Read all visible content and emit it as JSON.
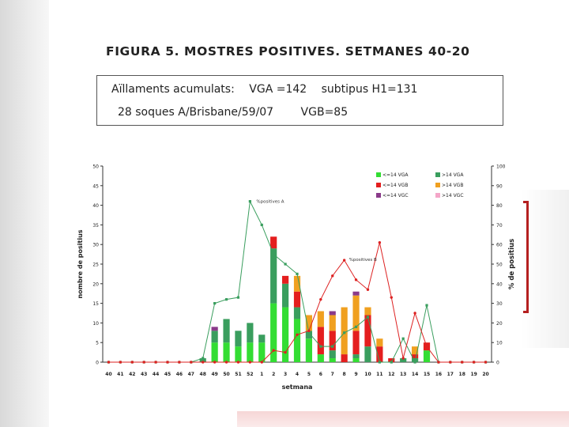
{
  "title": "FIGURA 5. MOSTRES POSITIVES. SETMANES 40-20",
  "info": {
    "line1_a": "Aïllaments acumulats:",
    "line1_b": "VGA =142",
    "line1_c": "subtipus H1=131",
    "line2_a": "28 soques A/Brisbane/59/07",
    "line2_b": "VGB=85"
  },
  "colors": {
    "vga_lt14": "#33dd33",
    "vga_gt14": "#3a9e5e",
    "vgb_lt14": "#e41e1e",
    "vgb_gt14": "#f0a020",
    "vgc_lt14": "#8a3a8a",
    "vgc_gt14": "#f4a6c8",
    "pct_a_line": "#3a9e5e",
    "pct_b_line": "#dd2222"
  },
  "chart_data": {
    "type": "bar",
    "stacked": true,
    "xlabel": "setmana",
    "ylabel": "nombre de positius",
    "y2label": "% de positius",
    "ylim": [
      0,
      50
    ],
    "y2lim": [
      0,
      100
    ],
    "yticks": [
      "0",
      "5",
      "10",
      "15",
      "20",
      "25",
      "30",
      "35",
      "40",
      "45",
      "50"
    ],
    "y2ticks": [
      "0",
      "10",
      "20",
      "30",
      "40",
      "50",
      "60",
      "70",
      "80",
      "90",
      "100"
    ],
    "categories": [
      "40",
      "41",
      "42",
      "43",
      "44",
      "45",
      "46",
      "47",
      "48",
      "49",
      "50",
      "51",
      "52",
      "1",
      "2",
      "3",
      "4",
      "5",
      "6",
      "7",
      "8",
      "9",
      "10",
      "11",
      "12",
      "13",
      "14",
      "15",
      "16",
      "17",
      "18",
      "19",
      "20"
    ],
    "legend": [
      "<=14 VGA",
      ">14 VGA",
      "<=14 VGB",
      ">14 VGB",
      "<=14 VGC",
      ">14 VGC"
    ],
    "series": [
      {
        "name": "<=14 VGA",
        "values": [
          0,
          0,
          0,
          0,
          0,
          0,
          0,
          0,
          0,
          5,
          5,
          4,
          5,
          5,
          15,
          14,
          11,
          6,
          2,
          1,
          0,
          1,
          0,
          0,
          0,
          0,
          0,
          3,
          0,
          0,
          0,
          0,
          0
        ]
      },
      {
        "name": ">14 VGA",
        "values": [
          0,
          0,
          0,
          0,
          0,
          0,
          0,
          0,
          1,
          3,
          6,
          4,
          5,
          2,
          14,
          6,
          3,
          2,
          0,
          2,
          0,
          1,
          4,
          0,
          0,
          1,
          1,
          0,
          0,
          0,
          0,
          0,
          0
        ]
      },
      {
        "name": "<=14 VGB",
        "values": [
          0,
          0,
          0,
          0,
          0,
          0,
          0,
          0,
          0,
          0,
          0,
          0,
          0,
          0,
          3,
          2,
          4,
          0,
          7,
          5,
          2,
          6,
          8,
          4,
          1,
          0,
          1,
          2,
          0,
          0,
          0,
          0,
          0
        ]
      },
      {
        "name": ">14 VGB",
        "values": [
          0,
          0,
          0,
          0,
          0,
          0,
          0,
          0,
          0,
          0,
          0,
          0,
          0,
          0,
          0,
          0,
          4,
          4,
          4,
          4,
          12,
          9,
          2,
          2,
          0,
          0,
          2,
          0,
          0,
          0,
          0,
          0,
          0
        ]
      },
      {
        "name": "<=14 VGC",
        "values": [
          0,
          0,
          0,
          0,
          0,
          0,
          0,
          0,
          0,
          1,
          0,
          0,
          0,
          0,
          0,
          0,
          0,
          0,
          0,
          1,
          0,
          1,
          0,
          0,
          0,
          0,
          0,
          0,
          0,
          0,
          0,
          0,
          0
        ]
      },
      {
        "name": ">14 VGC",
        "values": [
          0,
          0,
          0,
          0,
          0,
          0,
          0,
          0,
          0,
          0,
          0,
          0,
          0,
          0,
          0,
          0,
          0,
          0,
          0,
          0,
          0,
          0,
          0,
          0,
          0,
          0,
          0,
          0,
          0,
          0,
          0,
          0,
          0
        ]
      }
    ],
    "lines": [
      {
        "name": "%positives A",
        "axis": "y2",
        "values": [
          0,
          0,
          0,
          0,
          0,
          0,
          0,
          0,
          2,
          30,
          32,
          33,
          82,
          70,
          55,
          50,
          45,
          15,
          8,
          8,
          15,
          18,
          23,
          0,
          0,
          12,
          0,
          29,
          0,
          0,
          0,
          0,
          0
        ]
      },
      {
        "name": "%positives B",
        "axis": "y2",
        "values": [
          0,
          0,
          0,
          0,
          0,
          0,
          0,
          0,
          0,
          0,
          0,
          0,
          0,
          0,
          6,
          5,
          14,
          16,
          32,
          44,
          52,
          42,
          37,
          61,
          33,
          2,
          25,
          8,
          0,
          0,
          0,
          0,
          0
        ]
      }
    ],
    "annotations": [
      "%positives A",
      "%positives B"
    ]
  }
}
